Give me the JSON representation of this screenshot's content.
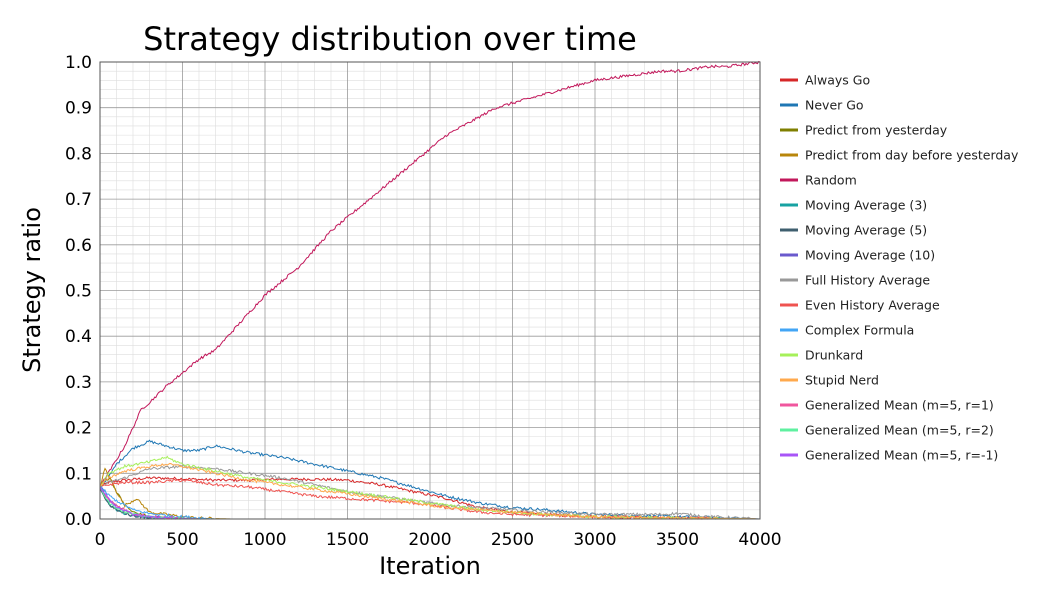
{
  "chart_data": {
    "type": "line",
    "title": "Strategy distribution over time",
    "xlabel": "Iteration",
    "ylabel": "Strategy ratio",
    "xlim": [
      0,
      4000
    ],
    "ylim": [
      0,
      1.0
    ],
    "grid": true,
    "legend_position": "right",
    "x_ticks": [
      "0",
      "500",
      "1000",
      "1500",
      "2000",
      "2500",
      "3000",
      "3500",
      "4000"
    ],
    "y_ticks": [
      "0.0",
      "0.1",
      "0.2",
      "0.3",
      "0.4",
      "0.5",
      "0.6",
      "0.7",
      "0.8",
      "0.9",
      "1.0"
    ],
    "series": [
      {
        "name": "Always Go",
        "color": "#d62728",
        "x": [
          0,
          50,
          150,
          300,
          500,
          700,
          900,
          1100,
          1300,
          1500,
          1700,
          1900,
          2100,
          2300,
          2500,
          2700,
          3000,
          3500,
          4000
        ],
        "y": [
          0.07,
          0.08,
          0.085,
          0.09,
          0.088,
          0.085,
          0.085,
          0.087,
          0.087,
          0.085,
          0.075,
          0.06,
          0.045,
          0.025,
          0.015,
          0.01,
          0.005,
          0.002,
          0.0
        ]
      },
      {
        "name": "Never Go",
        "color": "#1f77b4",
        "x": [
          0,
          50,
          100,
          200,
          300,
          400,
          500,
          600,
          700,
          900,
          1100,
          1300,
          1500,
          1700,
          1900,
          2100,
          2300,
          2500,
          2700,
          3000,
          3500,
          4000
        ],
        "y": [
          0.07,
          0.09,
          0.12,
          0.155,
          0.17,
          0.16,
          0.15,
          0.15,
          0.16,
          0.145,
          0.135,
          0.12,
          0.105,
          0.09,
          0.07,
          0.05,
          0.035,
          0.025,
          0.02,
          0.01,
          0.005,
          0.0
        ]
      },
      {
        "name": "Predict from yesterday",
        "color": "#7f7f00",
        "x": [
          0,
          30,
          60,
          100,
          150,
          200,
          300,
          400,
          600,
          800,
          4000
        ],
        "y": [
          0.07,
          0.085,
          0.09,
          0.06,
          0.03,
          0.015,
          0.005,
          0.002,
          0.0,
          0.0,
          0.0
        ]
      },
      {
        "name": "Predict from day before yesterday",
        "color": "#b8860b",
        "x": [
          0,
          30,
          60,
          100,
          150,
          200,
          220,
          260,
          300,
          400,
          500,
          600,
          800,
          4000
        ],
        "y": [
          0.07,
          0.11,
          0.09,
          0.06,
          0.03,
          0.04,
          0.045,
          0.03,
          0.015,
          0.01,
          0.005,
          0.002,
          0.0,
          0.0
        ]
      },
      {
        "name": "Random",
        "color": "#c2185b",
        "x": [
          0,
          50,
          100,
          150,
          200,
          250,
          300,
          400,
          500,
          600,
          700,
          800,
          900,
          1000,
          1100,
          1200,
          1300,
          1400,
          1500,
          1600,
          1700,
          1800,
          1900,
          2000,
          2100,
          2200,
          2300,
          2400,
          2500,
          2600,
          2700,
          2800,
          2900,
          3000,
          3100,
          3200,
          3300,
          3400,
          3500,
          3600,
          3700,
          3800,
          3900,
          4000
        ],
        "y": [
          0.07,
          0.1,
          0.13,
          0.16,
          0.2,
          0.24,
          0.255,
          0.29,
          0.32,
          0.35,
          0.37,
          0.41,
          0.45,
          0.49,
          0.52,
          0.55,
          0.59,
          0.63,
          0.66,
          0.69,
          0.72,
          0.75,
          0.78,
          0.81,
          0.84,
          0.86,
          0.88,
          0.9,
          0.91,
          0.92,
          0.93,
          0.94,
          0.95,
          0.96,
          0.965,
          0.97,
          0.975,
          0.98,
          0.98,
          0.985,
          0.99,
          0.99,
          0.995,
          1.0
        ]
      },
      {
        "name": "Moving Average (3)",
        "color": "#17a2a2",
        "x": [
          0,
          30,
          60,
          100,
          150,
          200,
          300,
          400,
          500,
          4000
        ],
        "y": [
          0.07,
          0.05,
          0.03,
          0.02,
          0.012,
          0.008,
          0.004,
          0.002,
          0.0,
          0.0
        ]
      },
      {
        "name": "Moving Average (5)",
        "color": "#3f5f6f",
        "x": [
          0,
          30,
          60,
          100,
          150,
          200,
          300,
          400,
          600,
          4000
        ],
        "y": [
          0.07,
          0.045,
          0.03,
          0.02,
          0.012,
          0.007,
          0.003,
          0.001,
          0.0,
          0.0
        ]
      },
      {
        "name": "Moving Average (10)",
        "color": "#6a5acd",
        "x": [
          0,
          30,
          60,
          100,
          150,
          200,
          300,
          400,
          600,
          4000
        ],
        "y": [
          0.07,
          0.06,
          0.04,
          0.03,
          0.02,
          0.01,
          0.005,
          0.002,
          0.0,
          0.0
        ]
      },
      {
        "name": "Full History Average",
        "color": "#999999",
        "x": [
          0,
          50,
          150,
          300,
          500,
          700,
          900,
          1100,
          1300,
          1500,
          1700,
          1900,
          2100,
          2300,
          2500,
          2700,
          3000,
          3400,
          3500,
          3700,
          4000
        ],
        "y": [
          0.07,
          0.08,
          0.09,
          0.11,
          0.115,
          0.11,
          0.1,
          0.09,
          0.075,
          0.06,
          0.05,
          0.04,
          0.03,
          0.025,
          0.02,
          0.015,
          0.01,
          0.01,
          0.012,
          0.005,
          0.0
        ]
      },
      {
        "name": "Even History Average",
        "color": "#ef5350",
        "x": [
          0,
          50,
          150,
          300,
          500,
          700,
          900,
          1100,
          1300,
          1500,
          1700,
          1900,
          2100,
          2300,
          2500,
          2700,
          3000,
          3500,
          4000
        ],
        "y": [
          0.07,
          0.075,
          0.08,
          0.08,
          0.085,
          0.075,
          0.07,
          0.06,
          0.05,
          0.045,
          0.04,
          0.035,
          0.025,
          0.015,
          0.01,
          0.008,
          0.005,
          0.002,
          0.0
        ]
      },
      {
        "name": "Complex Formula",
        "color": "#42a5f5",
        "x": [
          0,
          30,
          60,
          100,
          150,
          200,
          300,
          400,
          500,
          600,
          700,
          4000
        ],
        "y": [
          0.07,
          0.06,
          0.05,
          0.04,
          0.03,
          0.02,
          0.012,
          0.008,
          0.005,
          0.002,
          0.0,
          0.0
        ]
      },
      {
        "name": "Drunkard",
        "color": "#a6f05a",
        "x": [
          0,
          50,
          150,
          300,
          400,
          500,
          700,
          900,
          1100,
          1300,
          1500,
          1700,
          1900,
          2100,
          2300,
          2500,
          2700,
          3000,
          3500,
          4000
        ],
        "y": [
          0.07,
          0.1,
          0.115,
          0.125,
          0.135,
          0.12,
          0.105,
          0.09,
          0.08,
          0.07,
          0.06,
          0.05,
          0.04,
          0.03,
          0.02,
          0.015,
          0.01,
          0.005,
          0.002,
          0.0
        ]
      },
      {
        "name": "Stupid Nerd",
        "color": "#ffa94d",
        "x": [
          0,
          50,
          150,
          300,
          400,
          500,
          700,
          900,
          1100,
          1300,
          1500,
          1700,
          1900,
          2100,
          2300,
          2500,
          2700,
          3000,
          3500,
          4000
        ],
        "y": [
          0.07,
          0.09,
          0.105,
          0.115,
          0.12,
          0.115,
          0.1,
          0.085,
          0.075,
          0.065,
          0.055,
          0.045,
          0.035,
          0.025,
          0.02,
          0.015,
          0.01,
          0.005,
          0.002,
          0.0
        ]
      },
      {
        "name": "Generalized Mean (m=5, r=1)",
        "color": "#f0569e",
        "x": [
          0,
          30,
          60,
          100,
          150,
          200,
          300,
          400,
          600,
          4000
        ],
        "y": [
          0.07,
          0.055,
          0.04,
          0.03,
          0.02,
          0.012,
          0.006,
          0.003,
          0.0,
          0.0
        ]
      },
      {
        "name": "Generalized Mean (m=5, r=2)",
        "color": "#5ff0a0",
        "x": [
          0,
          30,
          60,
          100,
          150,
          200,
          300,
          400,
          600,
          4000
        ],
        "y": [
          0.07,
          0.05,
          0.035,
          0.025,
          0.015,
          0.01,
          0.005,
          0.002,
          0.0,
          0.0
        ]
      },
      {
        "name": "Generalized Mean (m=5, r=-1)",
        "color": "#a855f7",
        "x": [
          0,
          30,
          60,
          100,
          150,
          200,
          300,
          400,
          600,
          4000
        ],
        "y": [
          0.07,
          0.055,
          0.04,
          0.028,
          0.018,
          0.01,
          0.005,
          0.002,
          0.0,
          0.0
        ]
      }
    ]
  }
}
